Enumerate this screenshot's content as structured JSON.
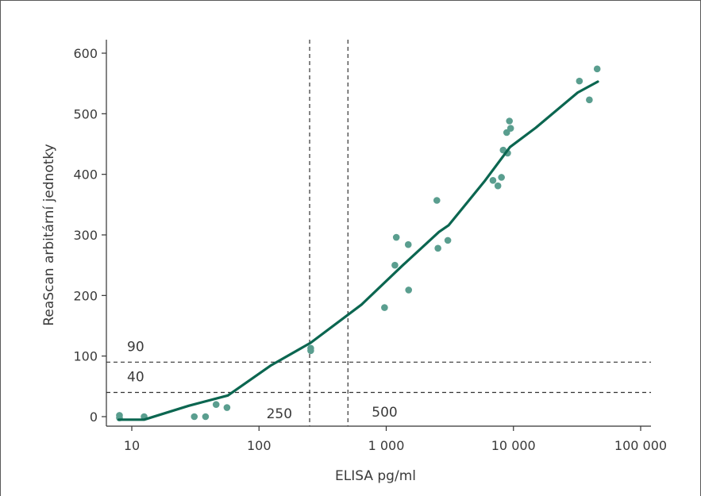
{
  "chart_data": {
    "type": "scatter",
    "xlabel": "ELISA  pg/ml",
    "ylabel": "ReaScan arbitární jednotky",
    "x_scale": "log",
    "xlim": [
      7,
      120000
    ],
    "ylim": [
      -15,
      620
    ],
    "x_ticks": [
      10,
      100,
      1000,
      10000,
      100000
    ],
    "x_tick_labels": [
      "10",
      "100",
      "1 000",
      "10 000",
      "100 000"
    ],
    "y_ticks": [
      0,
      100,
      200,
      300,
      400,
      500,
      600
    ],
    "y_tick_labels": [
      "0",
      "100",
      "200",
      "300",
      "400",
      "500",
      "600"
    ],
    "grid": false,
    "colors": {
      "points": "#5a9e8f",
      "curve": "#0b6650",
      "reference": "#333333"
    },
    "points": [
      {
        "x": 8,
        "y": 2
      },
      {
        "x": 8,
        "y": -2
      },
      {
        "x": 12.5,
        "y": 0
      },
      {
        "x": 31,
        "y": 0
      },
      {
        "x": 38,
        "y": 0
      },
      {
        "x": 46,
        "y": 20
      },
      {
        "x": 56,
        "y": 15
      },
      {
        "x": 255,
        "y": 113
      },
      {
        "x": 255,
        "y": 109
      },
      {
        "x": 970,
        "y": 180
      },
      {
        "x": 1170,
        "y": 250
      },
      {
        "x": 1200,
        "y": 296
      },
      {
        "x": 1490,
        "y": 284
      },
      {
        "x": 1500,
        "y": 209
      },
      {
        "x": 2500,
        "y": 357
      },
      {
        "x": 2550,
        "y": 278
      },
      {
        "x": 3050,
        "y": 291
      },
      {
        "x": 6900,
        "y": 390
      },
      {
        "x": 7550,
        "y": 381
      },
      {
        "x": 8050,
        "y": 395
      },
      {
        "x": 8300,
        "y": 440
      },
      {
        "x": 8850,
        "y": 469
      },
      {
        "x": 9000,
        "y": 435
      },
      {
        "x": 9300,
        "y": 488
      },
      {
        "x": 9500,
        "y": 476
      },
      {
        "x": 33000,
        "y": 554
      },
      {
        "x": 39500,
        "y": 523
      },
      {
        "x": 45500,
        "y": 574
      }
    ],
    "series": [
      {
        "type": "line",
        "x": [
          7.9,
          12.5,
          28,
          57,
          125,
          255,
          640,
          1350,
          2600,
          3100,
          5900,
          9400,
          15000,
          32000,
          46000
        ],
        "y": [
          -5,
          -5,
          18,
          35,
          85,
          122,
          185,
          250,
          305,
          316,
          388,
          445,
          477,
          535,
          553
        ]
      }
    ],
    "reference_lines": {
      "vertical": [
        {
          "x": 250,
          "label": "250"
        },
        {
          "x": 500,
          "label": "500"
        }
      ],
      "horizontal": [
        {
          "y": 90,
          "label": "90"
        },
        {
          "y": 40,
          "label": "40"
        }
      ]
    }
  }
}
